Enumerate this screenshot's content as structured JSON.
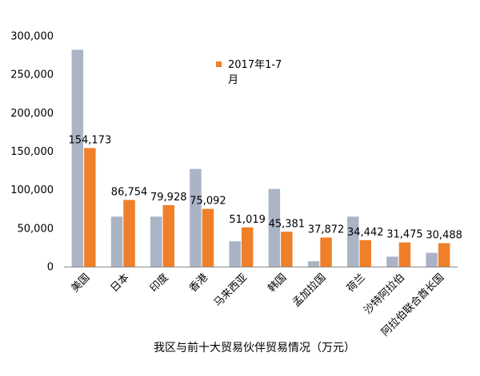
{
  "chart_data": {
    "type": "bar",
    "title": "",
    "xlabel": "我区与前十大贸易伙伴贸易情况（万元）",
    "ylabel": "",
    "ylim": [
      0,
      300000
    ],
    "yticks": [
      0,
      50000,
      100000,
      150000,
      200000,
      250000,
      300000
    ],
    "ytick_labels": [
      "0",
      "50,000",
      "100,000",
      "150,000",
      "200,000",
      "250,000",
      "300,000"
    ],
    "grid": false,
    "legend": {
      "placement": "top-center",
      "entries": [
        "2017年1-7月"
      ]
    },
    "categories": [
      "美国",
      "日本",
      "印度",
      "香港",
      "马来西亚",
      "韩国",
      "孟加拉国",
      "荷兰",
      "沙特阿拉伯",
      "阿拉伯联合酋长国"
    ],
    "series": [
      {
        "color": "#aab4c4",
        "values": [
          282000,
          65000,
          65000,
          127000,
          33000,
          101000,
          7000,
          65000,
          13000,
          18000
        ],
        "labels": []
      },
      {
        "name": "2017年1-7月",
        "color": "#f07f2a",
        "values": [
          154173,
          86754,
          79928,
          75092,
          51019,
          45381,
          37872,
          34442,
          31475,
          30488
        ],
        "labels": [
          "154,173",
          "86,754",
          "79,928",
          "75,092",
          "51,019",
          "45,381",
          "37,872",
          "34,442",
          "31,475",
          "30,488"
        ]
      }
    ]
  }
}
